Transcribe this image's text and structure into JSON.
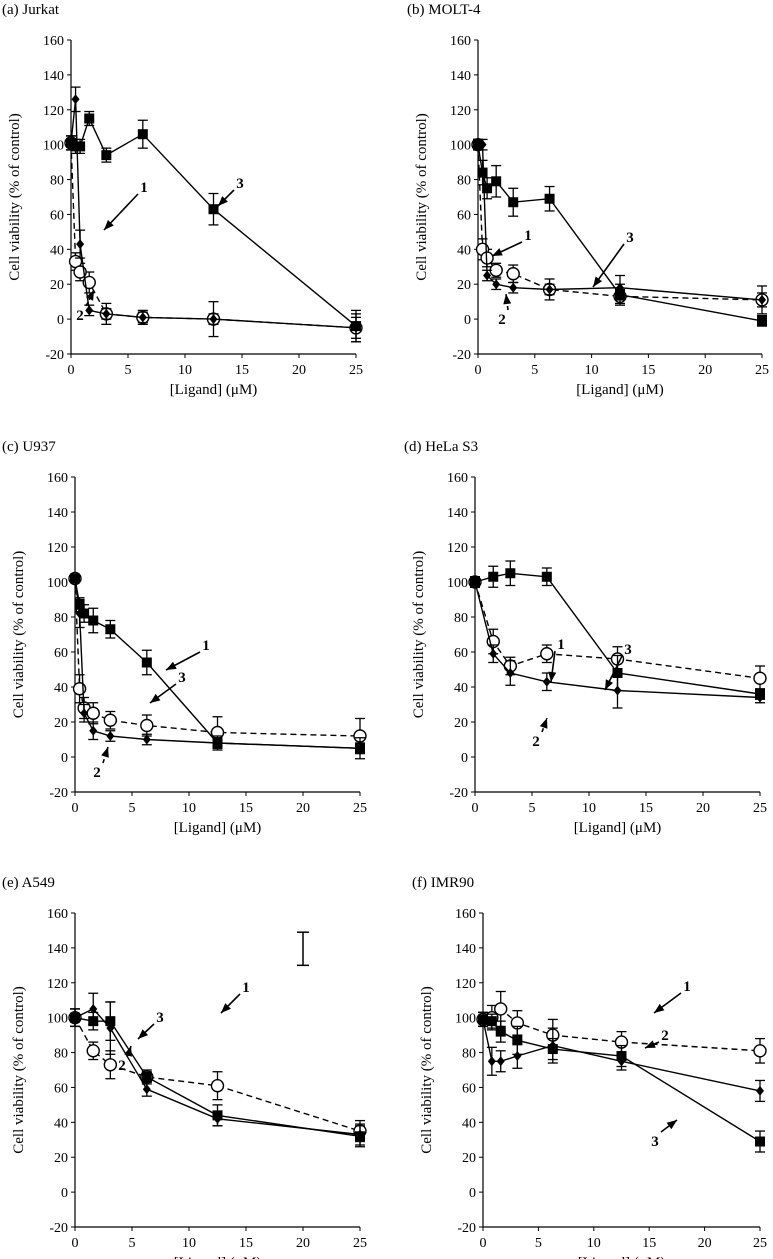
{
  "figure": {
    "x_label": "[Ligand] (μM)",
    "y_label": "Cell viability (% of control)"
  },
  "chart_data": [
    {
      "type": "line",
      "title": "(a) Jurkat",
      "xlabel": "[Ligand] (μM)",
      "ylabel": "Cell viability (% of control)",
      "xlim": [
        0,
        25
      ],
      "ylim": [
        -20,
        160
      ],
      "xticks": [
        0,
        5,
        10,
        15,
        20,
        25
      ],
      "yticks": [
        -20,
        0,
        20,
        40,
        60,
        80,
        100,
        120,
        140,
        160
      ],
      "series": [
        {
          "name": "1",
          "marker": "open-circle",
          "line": "dashed",
          "x": [
            0,
            0.4,
            0.8,
            1.6,
            3.1,
            6.3,
            12.5,
            25
          ],
          "y": [
            101,
            33,
            27,
            21,
            3,
            1,
            0,
            -5
          ],
          "err": [
            4,
            5,
            5,
            6,
            6,
            4,
            10,
            8
          ]
        },
        {
          "name": "2",
          "marker": "diamond",
          "line": "solid",
          "x": [
            0,
            0.4,
            0.8,
            1.6,
            3.1,
            6.3,
            12.5,
            25
          ],
          "y": [
            101,
            126,
            43,
            5,
            3,
            1,
            0,
            -5
          ],
          "err": [
            4,
            7,
            8,
            3,
            3,
            3,
            3,
            6
          ]
        },
        {
          "name": "3",
          "marker": "square",
          "line": "solid",
          "x": [
            0,
            0.4,
            0.8,
            1.6,
            3.1,
            6.3,
            12.5,
            25
          ],
          "y": [
            101,
            99,
            99,
            115,
            94,
            106,
            63,
            -4
          ],
          "err": [
            4,
            4,
            4,
            4,
            4,
            8,
            9,
            9
          ]
        }
      ],
      "annotations": [
        {
          "text": "1",
          "series": "1"
        },
        {
          "text": "2",
          "series": "2"
        },
        {
          "text": "3",
          "series": "3"
        }
      ]
    },
    {
      "type": "line",
      "title": "(b) MOLT-4",
      "xlabel": "[Ligand] (μM)",
      "ylabel": "Cell viability (% of control)",
      "xlim": [
        0,
        25
      ],
      "ylim": [
        -20,
        160
      ],
      "xticks": [
        0,
        5,
        10,
        15,
        20,
        25
      ],
      "yticks": [
        -20,
        0,
        20,
        40,
        60,
        80,
        100,
        120,
        140,
        160
      ],
      "series": [
        {
          "name": "1",
          "marker": "open-circle",
          "line": "dashed",
          "x": [
            0,
            0.4,
            0.8,
            1.6,
            3.1,
            6.3,
            12.5,
            25
          ],
          "y": [
            100,
            40,
            35,
            28,
            26,
            17,
            13,
            11
          ],
          "err": [
            3,
            6,
            5,
            4,
            5,
            6,
            4,
            8
          ]
        },
        {
          "name": "2",
          "marker": "diamond",
          "line": "solid",
          "x": [
            0,
            0.4,
            0.8,
            1.6,
            3.1,
            6.3,
            12.5,
            25
          ],
          "y": [
            100,
            100,
            25,
            20,
            18,
            17,
            18,
            11
          ],
          "err": [
            3,
            3,
            3,
            3,
            3,
            3,
            7,
            4
          ]
        },
        {
          "name": "3",
          "marker": "square",
          "line": "solid",
          "x": [
            0,
            0.4,
            0.8,
            1.6,
            3.1,
            6.3,
            12.5,
            25
          ],
          "y": [
            100,
            84,
            75,
            79,
            67,
            69,
            14,
            -1
          ],
          "err": [
            3,
            7,
            6,
            9,
            8,
            7,
            6,
            3
          ]
        }
      ],
      "annotations": [
        {
          "text": "1",
          "series": "1"
        },
        {
          "text": "2",
          "series": "2"
        },
        {
          "text": "3",
          "series": "3"
        }
      ]
    },
    {
      "type": "line",
      "title": "(c) U937",
      "xlabel": "[Ligand] (μM)",
      "ylabel": "Cell viability (% of control)",
      "xlim": [
        0,
        25
      ],
      "ylim": [
        -20,
        160
      ],
      "xticks": [
        0,
        5,
        10,
        15,
        20,
        25
      ],
      "yticks": [
        -20,
        0,
        20,
        40,
        60,
        80,
        100,
        120,
        140,
        160
      ],
      "series": [
        {
          "name": "1",
          "marker": "open-circle",
          "line": "dashed",
          "x": [
            0,
            0.4,
            0.8,
            1.6,
            3.1,
            6.3,
            12.5,
            25
          ],
          "y": [
            102,
            39,
            28,
            25,
            21,
            18,
            14,
            12
          ],
          "err": [
            2,
            8,
            6,
            6,
            5,
            6,
            9,
            10
          ]
        },
        {
          "name": "2",
          "marker": "diamond",
          "line": "solid",
          "x": [
            0,
            0.4,
            0.8,
            1.6,
            3.1,
            6.3,
            12.5,
            25
          ],
          "y": [
            102,
            82,
            25,
            15,
            12,
            10,
            8,
            5
          ],
          "err": [
            2,
            8,
            5,
            5,
            3,
            3,
            3,
            3
          ]
        },
        {
          "name": "3",
          "marker": "square",
          "line": "solid",
          "x": [
            0,
            0.4,
            0.8,
            1.6,
            3.1,
            6.3,
            12.5,
            25
          ],
          "y": [
            102,
            87,
            82,
            78,
            73,
            54,
            8,
            5
          ],
          "err": [
            2,
            4,
            5,
            7,
            5,
            7,
            4,
            6
          ]
        }
      ],
      "annotations": [
        {
          "text": "1",
          "series": "1"
        },
        {
          "text": "2",
          "series": "2"
        },
        {
          "text": "3",
          "series": "3"
        }
      ]
    },
    {
      "type": "line",
      "title": "(d) HeLa S3",
      "xlabel": "[Ligand] (μM)",
      "ylabel": "Cell viability (% of control)",
      "xlim": [
        0,
        25
      ],
      "ylim": [
        -20,
        160
      ],
      "xticks": [
        0,
        5,
        10,
        15,
        20,
        25
      ],
      "yticks": [
        -20,
        0,
        20,
        40,
        60,
        80,
        100,
        120,
        140,
        160
      ],
      "series": [
        {
          "name": "1",
          "marker": "open-circle",
          "line": "dashed",
          "x": [
            0,
            1.6,
            3.1,
            6.3,
            12.5,
            25
          ],
          "y": [
            100,
            66,
            52,
            59,
            56,
            45
          ],
          "err": [
            3,
            7,
            5,
            5,
            7,
            7
          ]
        },
        {
          "name": "2",
          "marker": "diamond",
          "line": "solid",
          "x": [
            0,
            1.6,
            3.1,
            6.3,
            12.5,
            25
          ],
          "y": [
            100,
            59,
            48,
            43,
            38,
            34
          ],
          "err": [
            3,
            5,
            7,
            5,
            10,
            3
          ]
        },
        {
          "name": "3",
          "marker": "square",
          "line": "solid",
          "x": [
            0,
            1.6,
            3.1,
            6.3,
            12.5,
            25
          ],
          "y": [
            100,
            103,
            105,
            103,
            48,
            36
          ],
          "err": [
            3,
            6,
            7,
            5,
            10,
            3
          ]
        }
      ],
      "annotations": [
        {
          "text": "1",
          "series": "1"
        },
        {
          "text": "2",
          "series": "2"
        },
        {
          "text": "3",
          "series": "3"
        }
      ]
    },
    {
      "type": "line",
      "title": "(e) A549",
      "xlabel": "[Ligand] (μM)",
      "ylabel": "Cell viability (% of control)",
      "xlim": [
        0,
        25
      ],
      "ylim": [
        -20,
        160
      ],
      "xticks": [
        0,
        5,
        10,
        15,
        20,
        25
      ],
      "yticks": [
        -20,
        0,
        20,
        40,
        60,
        80,
        100,
        120,
        140,
        160
      ],
      "series": [
        {
          "name": "1",
          "marker": "open-circle",
          "line": "dashed",
          "x": [
            0,
            1.6,
            3.1,
            6.3,
            12.5,
            25
          ],
          "y": [
            100,
            81,
            73,
            66,
            61,
            35
          ],
          "err": [
            5,
            5,
            8,
            3,
            8,
            6
          ]
        },
        {
          "name": "2",
          "marker": "diamond",
          "line": "solid",
          "x": [
            0,
            1.6,
            3.1,
            6.3,
            12.5,
            25
          ],
          "y": [
            100,
            105,
            94,
            59,
            42,
            33
          ],
          "err": [
            5,
            9,
            15,
            4,
            4,
            6
          ]
        },
        {
          "name": "3",
          "marker": "square",
          "line": "solid",
          "x": [
            0,
            1.6,
            3.1,
            6.3,
            12.5,
            25
          ],
          "y": [
            100,
            98,
            98,
            66,
            44,
            32
          ],
          "err": [
            5,
            5,
            11,
            4,
            6,
            6
          ]
        }
      ],
      "extra_errorbar": {
        "x": 20,
        "low": 130,
        "high": 149
      },
      "annotations": [
        {
          "text": "1",
          "series": "1"
        },
        {
          "text": "2",
          "series": "2"
        },
        {
          "text": "3",
          "series": "3"
        }
      ]
    },
    {
      "type": "line",
      "title": "(f) IMR90",
      "xlabel": "[Ligand] (μM)",
      "ylabel": "Cell viability (% of control)",
      "xlim": [
        0,
        25
      ],
      "ylim": [
        -20,
        160
      ],
      "xticks": [
        0,
        5,
        10,
        15,
        20,
        25
      ],
      "yticks": [
        -20,
        0,
        20,
        40,
        60,
        80,
        100,
        120,
        140,
        160
      ],
      "series": [
        {
          "name": "1",
          "marker": "open-circle",
          "line": "dashed",
          "x": [
            0,
            0.8,
            1.6,
            3.1,
            6.3,
            12.5,
            25
          ],
          "y": [
            99,
            100,
            105,
            97,
            90,
            86,
            81
          ],
          "err": [
            4,
            7,
            10,
            7,
            9,
            6,
            7
          ]
        },
        {
          "name": "2",
          "marker": "diamond",
          "line": "solid",
          "x": [
            0,
            0.8,
            1.6,
            3.1,
            6.3,
            12.5,
            25
          ],
          "y": [
            99,
            75,
            75,
            78,
            84,
            75,
            58
          ],
          "err": [
            4,
            8,
            6,
            7,
            10,
            5,
            6
          ]
        },
        {
          "name": "3",
          "marker": "square",
          "line": "solid",
          "x": [
            0,
            0.8,
            1.6,
            3.1,
            6.3,
            12.5,
            25
          ],
          "y": [
            99,
            98,
            92,
            87,
            82,
            78,
            29
          ],
          "err": [
            4,
            4,
            6,
            8,
            6,
            6,
            6
          ]
        }
      ],
      "annotations": [
        {
          "text": "1",
          "series": "1"
        },
        {
          "text": "2",
          "series": "2"
        },
        {
          "text": "3",
          "series": "3"
        }
      ]
    }
  ]
}
